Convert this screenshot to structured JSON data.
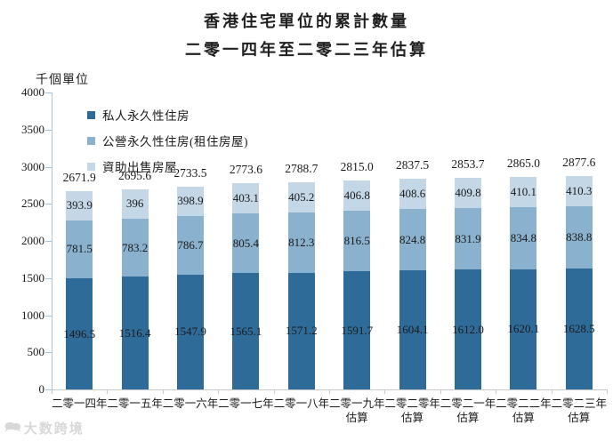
{
  "title": "香港住宅單位的累計數量",
  "subtitle": "二零一四年至二零二三年估算",
  "y_axis_unit": "千個單位",
  "watermark": {
    "icon": "icon-speech-bubble",
    "text": "大数跨境"
  },
  "chart_data": {
    "type": "bar",
    "stacked": true,
    "grid": false,
    "legend_position": "top-left-inside",
    "ylim": [
      0,
      4000
    ],
    "y_ticks": [
      "0",
      "500",
      "1000",
      "1500",
      "2000",
      "2500",
      "3000",
      "3500",
      "4000"
    ],
    "categories": [
      {
        "year": "二零一四年",
        "note": ""
      },
      {
        "year": "二零一五年",
        "note": ""
      },
      {
        "year": "二零一六年",
        "note": ""
      },
      {
        "year": "二零一七年",
        "note": ""
      },
      {
        "year": "二零一八年",
        "note": ""
      },
      {
        "year": "二零一九年",
        "note": "估算"
      },
      {
        "year": "二零二零年",
        "note": "估算"
      },
      {
        "year": "二零二一年",
        "note": "估算"
      },
      {
        "year": "二零二二年",
        "note": "估算"
      },
      {
        "year": "二零二三年",
        "note": "估算"
      }
    ],
    "series": [
      {
        "name": "私人永久性住房",
        "color": "#2f6b99",
        "values": [
          "1496.5",
          "1516.4",
          "1547.9",
          "1565.1",
          "1571.2",
          "1591.7",
          "1604.1",
          "1612.0",
          "1620.1",
          "1628.5"
        ]
      },
      {
        "name": "公營永久性住房(租住房屋)",
        "color": "#8ab1ce",
        "values": [
          "781.5",
          "783.2",
          "786.7",
          "805.4",
          "812.3",
          "816.5",
          "824.8",
          "831.9",
          "834.8",
          "838.8"
        ]
      },
      {
        "name": "資助出售房屋",
        "color": "#c3d7e6",
        "values": [
          "393.9",
          "396",
          "398.9",
          "403.1",
          "405.2",
          "406.8",
          "408.6",
          "409.8",
          "410.1",
          "410.3"
        ]
      }
    ],
    "totals": [
      "2671.9",
      "2695.6",
      "2733.5",
      "2773.6",
      "2788.7",
      "2815.0",
      "2837.5",
      "2853.7",
      "2865.0",
      "2877.6"
    ]
  }
}
